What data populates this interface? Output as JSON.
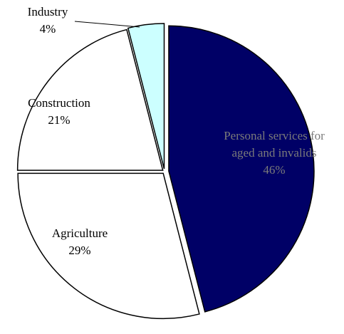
{
  "chart_data": {
    "type": "pie",
    "categories": [
      "Personal services for aged and invalids",
      "Agriculture",
      "Construction",
      "Industry"
    ],
    "values": [
      46,
      29,
      21,
      4
    ],
    "labels": [
      {
        "lines": [
          "Personal services for",
          "aged and invalids"
        ],
        "value_text": "46%"
      },
      {
        "lines": [
          "Agriculture"
        ],
        "value_text": "29%"
      },
      {
        "lines": [
          "Construction"
        ],
        "value_text": "21%"
      },
      {
        "lines": [
          "Industry"
        ],
        "value_text": "4%"
      }
    ],
    "colors": [
      "#000066",
      "#ffffff",
      "#ffffff",
      "#ccffff"
    ],
    "stroke_color": "#000000",
    "start_angle_deg": 0,
    "direction": "clockwise",
    "exploded": true
  }
}
